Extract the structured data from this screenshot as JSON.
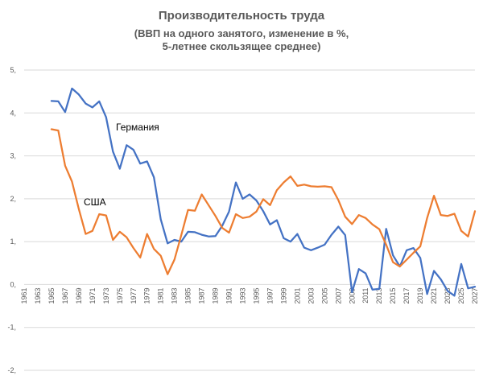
{
  "chart_data": {
    "type": "line",
    "title": "Производительность труда",
    "subtitle_lines": [
      "(ВВП на одного занятого, изменение в %,",
      "5-летнее скользящее среднее)"
    ],
    "xlabel": "",
    "ylabel": "",
    "ylim": [
      -2,
      5
    ],
    "xlim": [
      1961,
      2027
    ],
    "y_ticks": [
      "-2,",
      "-1,",
      "0,",
      "1,",
      "2,",
      "3,",
      "4,",
      "5,"
    ],
    "y_tick_values": [
      -2,
      -1,
      0,
      1,
      2,
      3,
      4,
      5
    ],
    "x_ticks": [
      "1961",
      "1963",
      "1965",
      "1967",
      "1969",
      "1971",
      "1973",
      "1975",
      "1977",
      "1979",
      "1981",
      "1983",
      "1985",
      "1987",
      "1989",
      "1991",
      "1993",
      "1995",
      "1997",
      "1999",
      "2001",
      "2003",
      "2005",
      "2007",
      "2009",
      "2011",
      "2013",
      "2015",
      "2017",
      "2019",
      "2021",
      "2023",
      "2025",
      "2027"
    ],
    "grid": "horizontal",
    "legend": "inline labels",
    "x": [
      1965,
      1966,
      1967,
      1968,
      1969,
      1970,
      1971,
      1972,
      1973,
      1974,
      1975,
      1976,
      1977,
      1978,
      1979,
      1980,
      1981,
      1982,
      1983,
      1984,
      1985,
      1986,
      1987,
      1988,
      1989,
      1990,
      1991,
      1992,
      1993,
      1994,
      1995,
      1996,
      1997,
      1998,
      1999,
      2000,
      2001,
      2002,
      2003,
      2004,
      2005,
      2006,
      2007,
      2008,
      2009,
      2010,
      2011,
      2012,
      2013,
      2014,
      2015,
      2016,
      2017,
      2018,
      2019,
      2020,
      2021,
      2022,
      2023,
      2024,
      2025,
      2026,
      2027
    ],
    "series": [
      {
        "name": "Германия",
        "color": "#4472C4",
        "values": [
          4.28,
          4.27,
          4.02,
          4.57,
          4.43,
          4.22,
          4.13,
          4.27,
          3.9,
          3.1,
          2.7,
          3.25,
          3.14,
          2.82,
          2.87,
          2.5,
          1.52,
          0.96,
          1.04,
          1.0,
          1.23,
          1.22,
          1.16,
          1.12,
          1.13,
          1.37,
          1.7,
          2.38,
          2.0,
          2.1,
          1.96,
          1.71,
          1.4,
          1.5,
          1.08,
          1.0,
          1.18,
          0.86,
          0.8,
          0.86,
          0.93,
          1.16,
          1.35,
          1.15,
          -0.18,
          0.36,
          0.26,
          -0.12,
          -0.1,
          1.3,
          0.68,
          0.42,
          0.8,
          0.85,
          0.62,
          -0.22,
          0.32,
          0.12,
          -0.15,
          -0.26,
          0.48,
          -0.09,
          -0.05
        ]
      },
      {
        "name": "США",
        "color": "#ED7D31",
        "values": [
          3.62,
          3.59,
          2.77,
          2.4,
          1.76,
          1.18,
          1.25,
          1.64,
          1.61,
          1.04,
          1.23,
          1.1,
          0.85,
          0.63,
          1.18,
          0.83,
          0.67,
          0.24,
          0.58,
          1.15,
          1.74,
          1.72,
          2.1,
          1.85,
          1.6,
          1.32,
          1.21,
          1.64,
          1.55,
          1.58,
          1.7,
          1.99,
          1.85,
          2.2,
          2.38,
          2.52,
          2.3,
          2.33,
          2.29,
          2.28,
          2.29,
          2.27,
          1.97,
          1.58,
          1.41,
          1.62,
          1.55,
          1.4,
          1.29,
          0.93,
          0.52,
          0.42,
          0.58,
          0.74,
          0.89,
          1.55,
          2.07,
          1.62,
          1.6,
          1.65,
          1.25,
          1.12,
          1.71
        ]
      }
    ]
  }
}
